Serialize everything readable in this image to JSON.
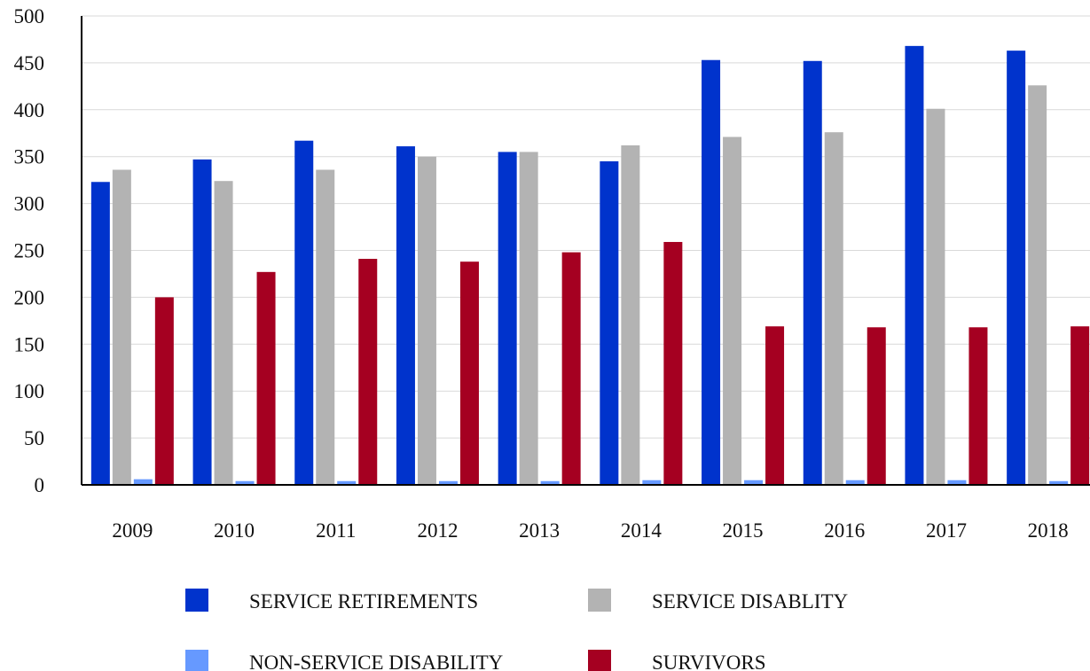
{
  "chart_data": {
    "type": "bar",
    "title": "",
    "xlabel": "",
    "ylabel": "",
    "ylim": [
      0,
      500
    ],
    "yticks": [
      0,
      50,
      100,
      150,
      200,
      250,
      300,
      350,
      400,
      450,
      500
    ],
    "grid": true,
    "legend_position": "bottom",
    "categories": [
      "2009",
      "2010",
      "2011",
      "2012",
      "2013",
      "2014",
      "2015",
      "2016",
      "2017",
      "2018"
    ],
    "series": [
      {
        "name": "SERVICE RETIREMENTS",
        "color": "#0033cc",
        "values": [
          323,
          347,
          367,
          361,
          355,
          345,
          453,
          452,
          468,
          463
        ]
      },
      {
        "name": "SERVICE DISABLITY",
        "color": "#b3b3b3",
        "values": [
          336,
          324,
          336,
          350,
          355,
          362,
          371,
          376,
          401,
          426
        ]
      },
      {
        "name": "NON-SERVICE DISABILITY",
        "color": "#6699ff",
        "values": [
          6,
          4,
          4,
          4,
          4,
          5,
          5,
          5,
          5,
          4
        ]
      },
      {
        "name": "SURVIVORS",
        "color": "#a50021",
        "values": [
          200,
          227,
          241,
          238,
          248,
          259,
          169,
          168,
          168,
          169
        ]
      }
    ]
  }
}
